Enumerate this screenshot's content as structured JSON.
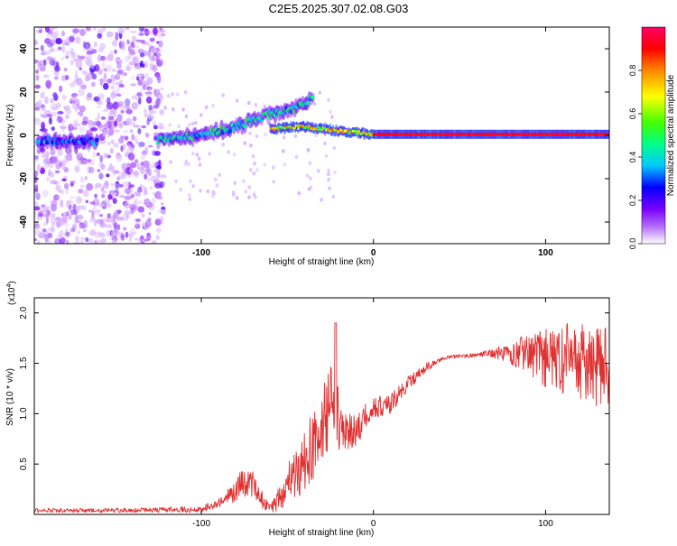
{
  "figure_title": "C2E5.2025.307.02.08.G03",
  "chart_data": [
    {
      "type": "heatmap",
      "title": "",
      "xlabel": "Height of straight line (km)",
      "ylabel": "Frequency (Hz)",
      "xlim": [
        -197,
        137
      ],
      "ylim": [
        -50,
        50
      ],
      "x_ticks": [
        -100,
        0,
        100
      ],
      "x_tick_labels": [
        "-100",
        "0",
        "100"
      ],
      "y_ticks": [
        -40,
        -20,
        0,
        20,
        40
      ],
      "y_tick_labels": [
        "-40",
        "-20",
        "0",
        "20",
        "40"
      ],
      "colorbar": {
        "label": "Normalized spectral amplitude",
        "range": [
          0,
          1
        ],
        "ticks": [
          0.0,
          0.2,
          0.4,
          0.6,
          0.8
        ],
        "tick_labels": [
          "0.0",
          "0.2",
          "0.4",
          "0.6",
          "0.8"
        ],
        "colors": [
          "#ffffff",
          "#b46cff",
          "#7a00ff",
          "#0000ff",
          "#00c8ff",
          "#00ff88",
          "#44ff00",
          "#ffff00",
          "#ff8800",
          "#ff0000",
          "#ff0066"
        ]
      },
      "features": [
        {
          "name": "noise band",
          "x_range": [
            -197,
            -122
          ],
          "freq_range": [
            -50,
            50
          ],
          "level": 0.15
        },
        {
          "name": "low-height segment",
          "x": [
            -195,
            -175,
            -160
          ],
          "freq": [
            -3,
            -2,
            -3
          ],
          "level": 0.35
        },
        {
          "name": "rising branch",
          "x": [
            -125,
            -100,
            -80,
            -60,
            -45,
            -35
          ],
          "freq": [
            -2,
            0,
            4,
            10,
            12,
            18
          ],
          "level": 0.45
        },
        {
          "name": "main line",
          "x": [
            -60,
            -40,
            -20,
            0,
            40,
            80,
            120,
            137
          ],
          "freq": [
            3,
            4,
            2,
            0.5,
            0.5,
            0.5,
            0.5,
            0.5
          ],
          "level": 0.95
        }
      ]
    },
    {
      "type": "line",
      "title": "",
      "xlabel": "Height of straight line (km)",
      "ylabel": "SNR (10 * v/v)",
      "y_scale_label": "(x10",
      "y_scale_exp": "4",
      "y_scale_close": ")",
      "xlim": [
        -197,
        137
      ],
      "ylim": [
        0,
        2.15
      ],
      "x_ticks": [
        -100,
        0,
        100
      ],
      "x_tick_labels": [
        "-100",
        "0",
        "100"
      ],
      "y_ticks": [
        0.5,
        1.0,
        1.5,
        2.0
      ],
      "y_tick_labels": [
        "0.5",
        "1.0",
        "1.5",
        "2.0"
      ],
      "series": [
        {
          "name": "SNR",
          "color": "#e03030",
          "x": [
            -197,
            -150,
            -100,
            -90,
            -80,
            -75,
            -70,
            -65,
            -60,
            -55,
            -50,
            -45,
            -40,
            -35,
            -30,
            -25,
            -22,
            -20,
            -15,
            -10,
            -5,
            0,
            10,
            20,
            30,
            40,
            50,
            60,
            70,
            80,
            90,
            100,
            110,
            120,
            130,
            137
          ],
          "y": [
            0.04,
            0.04,
            0.05,
            0.12,
            0.22,
            0.35,
            0.3,
            0.15,
            0.05,
            0.15,
            0.3,
            0.4,
            0.55,
            0.7,
            0.9,
            1.05,
            1.2,
            0.85,
            0.8,
            0.85,
            0.95,
            1.05,
            1.1,
            1.3,
            1.45,
            1.55,
            1.57,
            1.58,
            1.6,
            1.6,
            1.6,
            1.55,
            1.55,
            1.5,
            1.45,
            1.45
          ],
          "amplitude": [
            0.02,
            0.02,
            0.03,
            0.05,
            0.1,
            0.18,
            0.15,
            0.1,
            0.05,
            0.12,
            0.2,
            0.3,
            0.3,
            0.35,
            0.4,
            0.4,
            0.5,
            0.25,
            0.2,
            0.2,
            0.15,
            0.12,
            0.1,
            0.08,
            0.05,
            0.02,
            0.02,
            0.02,
            0.05,
            0.12,
            0.2,
            0.3,
            0.35,
            0.4,
            0.4,
            0.4
          ]
        }
      ]
    }
  ]
}
